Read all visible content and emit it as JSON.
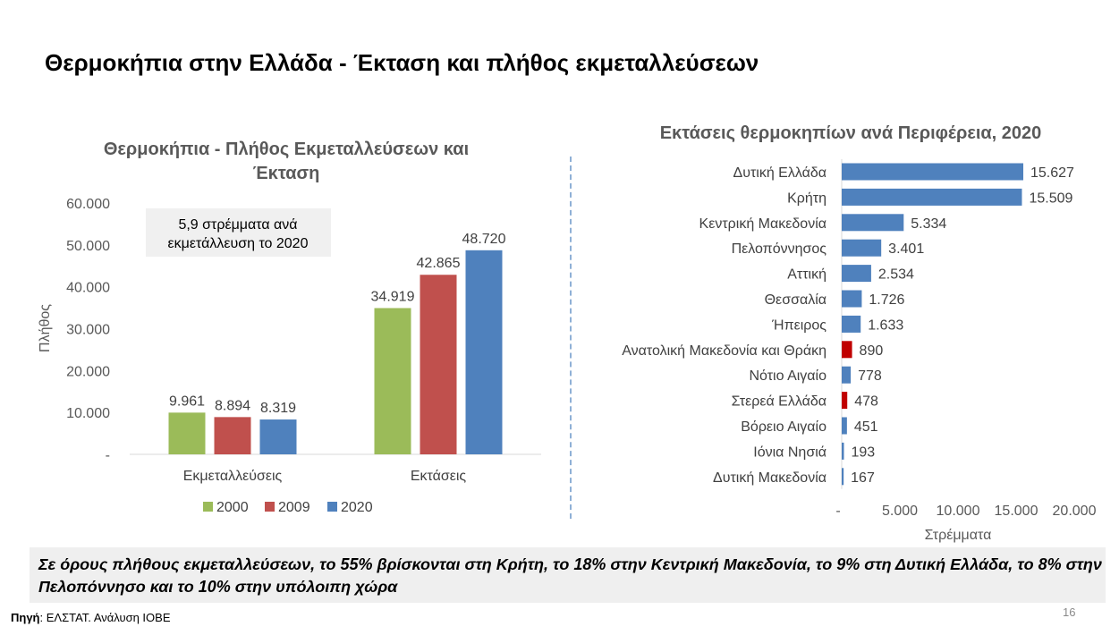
{
  "page": {
    "title": "Θερμοκήπια στην Ελλάδα - Έκταση και πλήθος εκμεταλλεύσεων",
    "summary": "Σε όρους πλήθους εκμεταλλεύσεων, το 55% βρίσκονται στη Κρήτη, το 18% στην Κεντρική Μακεδονία, το 9% στη Δυτική Ελλάδα, το 8% στην Πελοπόννησο και το 10% στην υπόλοιπη χώρα",
    "source_label": "Πηγή",
    "source_text": ": ΕΛΣΤΑΤ. Ανάλυση ΙΟΒΕ",
    "page_number": "16"
  },
  "chart_data": [
    {
      "type": "bar",
      "title_lines": [
        "Θερμοκήπια - Πλήθος Εκμεταλλεύσεων και",
        "Έκταση"
      ],
      "ylabel": "Πλήθος",
      "ylim": [
        0,
        60000
      ],
      "yticks": [
        "-",
        "10.000",
        "20.000",
        "30.000",
        "40.000",
        "50.000",
        "60.000"
      ],
      "categories": [
        "Εκμεταλλεύσεις",
        "Εκτάσεις"
      ],
      "series": [
        {
          "name": "2000",
          "color": "#9bbb59",
          "values": [
            9961,
            34919
          ],
          "labels": [
            "9.961",
            "34.919"
          ]
        },
        {
          "name": "2009",
          "color": "#c0504d",
          "values": [
            8894,
            42865
          ],
          "labels": [
            "8.894",
            "42.865"
          ]
        },
        {
          "name": "2020",
          "color": "#4f81bd",
          "values": [
            8319,
            48720
          ],
          "labels": [
            "8.319",
            "48.720"
          ]
        }
      ],
      "annotation_lines": [
        "5,9 στρέμματα ανά",
        "εκμετάλλευση το 2020"
      ],
      "legend_position": "bottom",
      "grid": false
    },
    {
      "type": "bar",
      "orientation": "horizontal",
      "title": "Εκτάσεις θερμοκηπίων ανά Περιφέρεια, 2020",
      "xlabel": "Στρέμματα",
      "xlim": [
        0,
        20000
      ],
      "xticks": [
        "-",
        "5.000",
        "10.000",
        "15.000",
        "20.000"
      ],
      "categories": [
        "Δυτική Ελλάδα",
        "Κρήτη",
        "Κεντρική Μακεδονία",
        "Πελοπόννησος",
        "Αττική",
        "Θεσσαλία",
        "Ήπειρος",
        "Ανατολική Μακεδονία και Θράκη",
        "Νότιο Αιγαίο",
        "Στερεά Ελλάδα",
        "Βόρειο Αιγαίο",
        "Ιόνια Νησιά",
        "Δυτική Μακεδονία"
      ],
      "values": [
        15627,
        15509,
        5334,
        3401,
        2534,
        1726,
        1633,
        890,
        778,
        478,
        451,
        193,
        167
      ],
      "labels": [
        "15.627",
        "15.509",
        "5.334",
        "3.401",
        "2.534",
        "1.726",
        "1.633",
        "890",
        "778",
        "478",
        "451",
        "193",
        "167"
      ],
      "colors": [
        "#4f81bd",
        "#4f81bd",
        "#4f81bd",
        "#4f81bd",
        "#4f81bd",
        "#4f81bd",
        "#4f81bd",
        "#c00000",
        "#4f81bd",
        "#c00000",
        "#4f81bd",
        "#4f81bd",
        "#4f81bd"
      ],
      "grid": false
    }
  ]
}
